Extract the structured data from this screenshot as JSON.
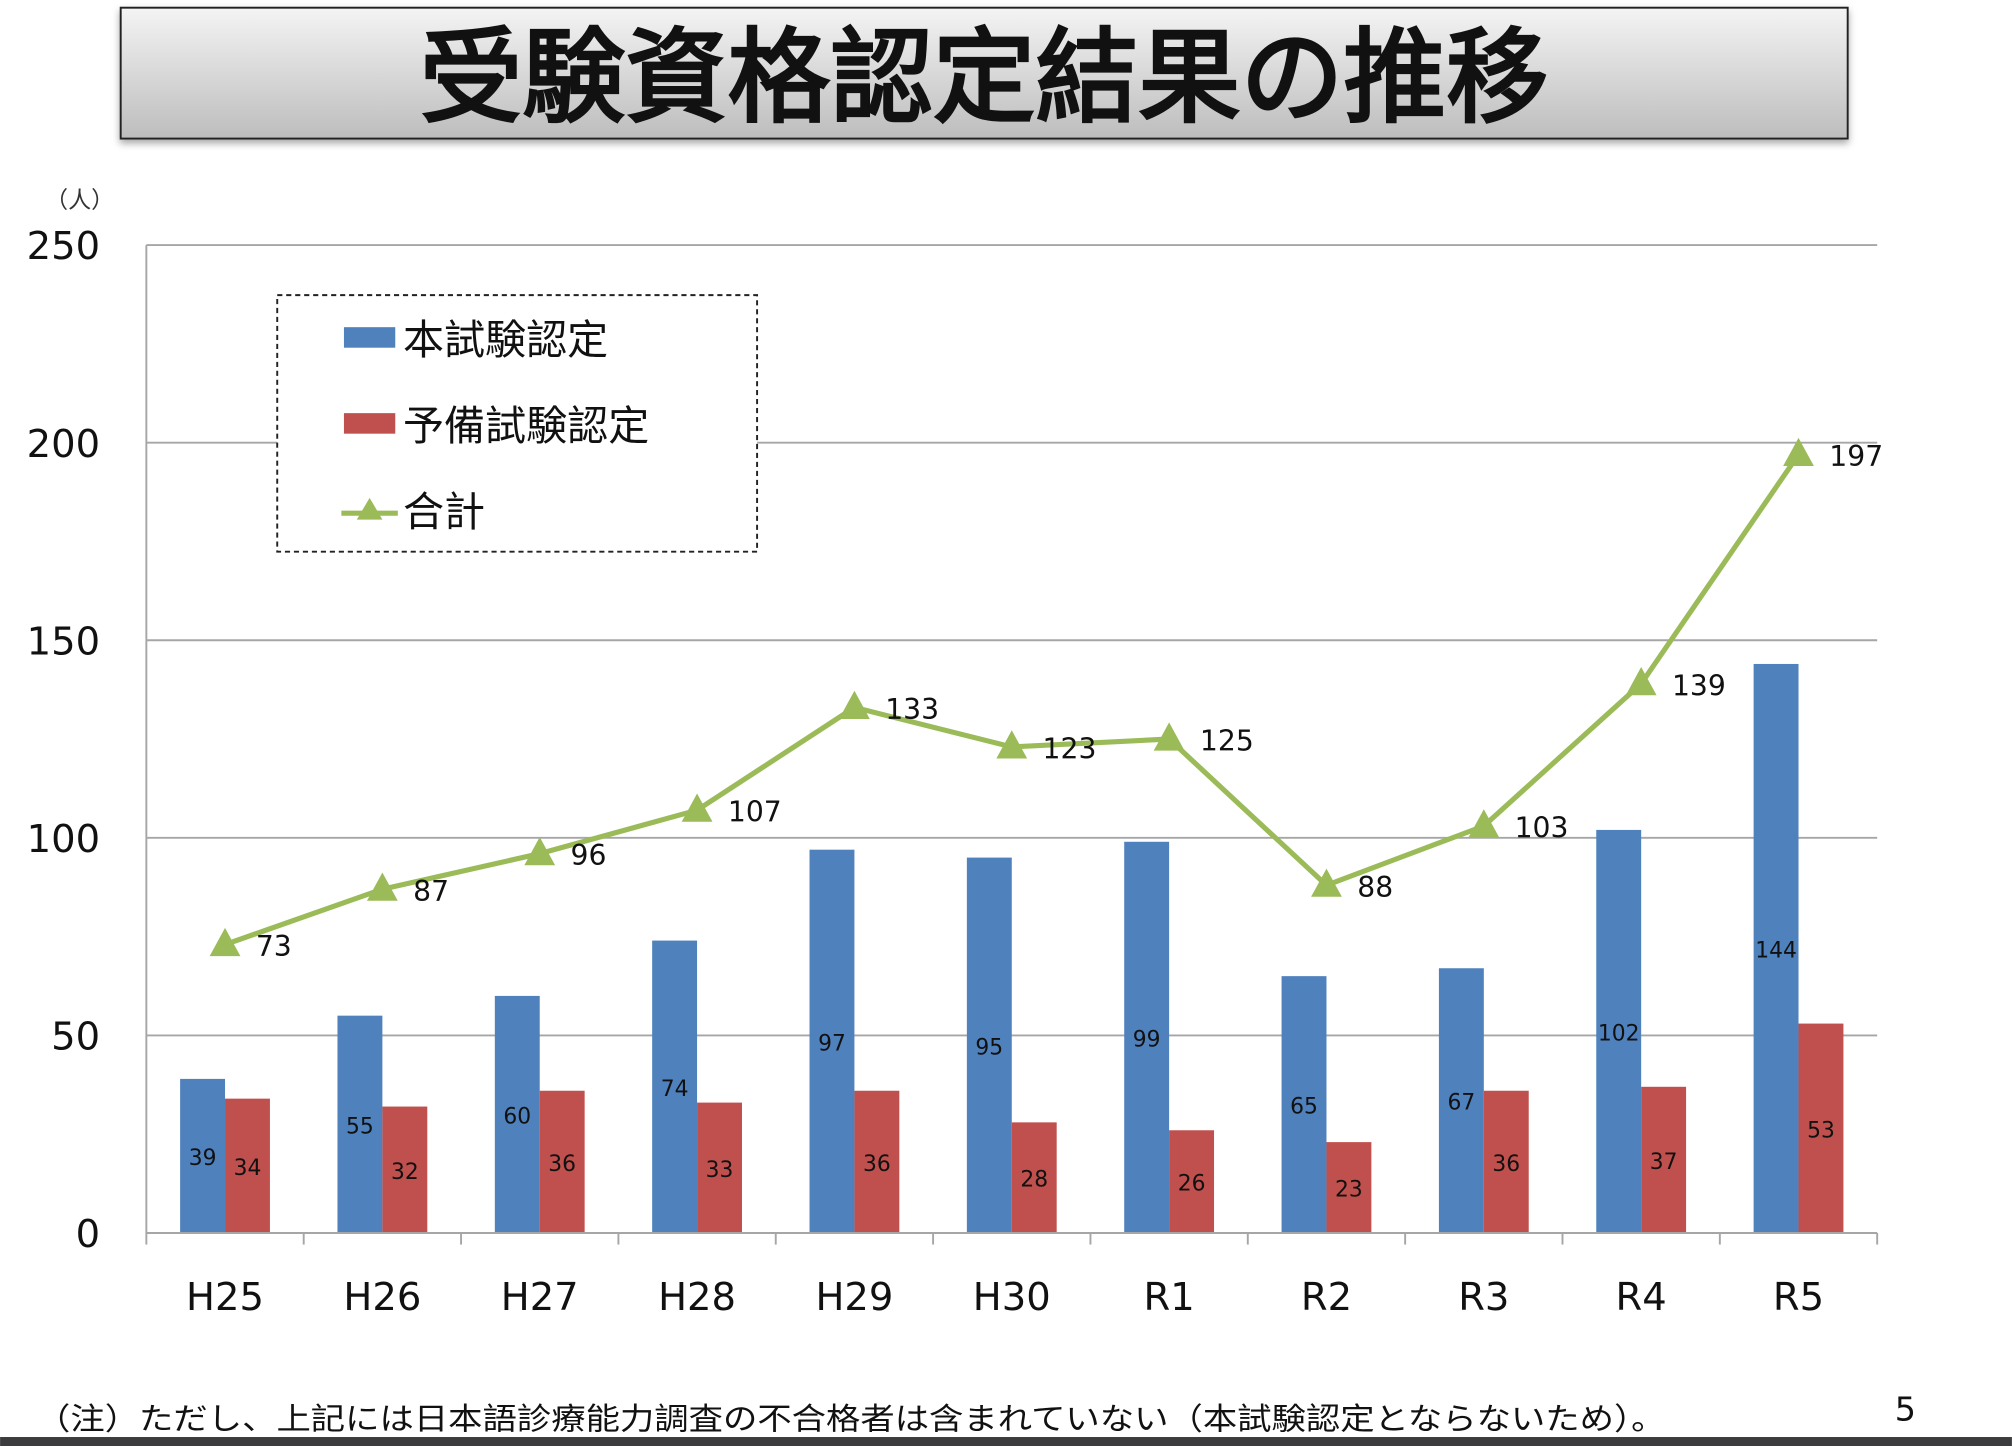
{
  "slide": {
    "title": "受験資格認定結果の推移",
    "footnote": "（注）ただし、上記には日本語診療能力調査の不合格者は含まれていない（本試験認定とならないため）。",
    "page_number": "5"
  },
  "chart_data": {
    "type": "bar+line",
    "title": "",
    "ylabel": "（人）",
    "xlabel": "",
    "ylim": [
      0,
      250
    ],
    "yticks": [
      "0",
      "50",
      "100",
      "150",
      "200",
      "250"
    ],
    "grid": true,
    "legend_placement": "top-left",
    "categories": [
      "H25",
      "H26",
      "H27",
      "H28",
      "H29",
      "H30",
      "R1",
      "R2",
      "R3",
      "R4",
      "R5"
    ],
    "series": [
      {
        "name": "本試験認定",
        "type": "bar",
        "color": "#4f81bd",
        "values": [
          39,
          55,
          60,
          74,
          97,
          95,
          99,
          65,
          67,
          102,
          144
        ]
      },
      {
        "name": "予備試験認定",
        "type": "bar",
        "color": "#c0504d",
        "values": [
          34,
          32,
          36,
          33,
          36,
          28,
          26,
          23,
          36,
          37,
          53
        ]
      },
      {
        "name": "合計",
        "type": "line",
        "marker": "triangle",
        "color": "#9bbb59",
        "values": [
          73,
          87,
          96,
          107,
          133,
          123,
          125,
          88,
          103,
          139,
          197
        ]
      }
    ]
  }
}
